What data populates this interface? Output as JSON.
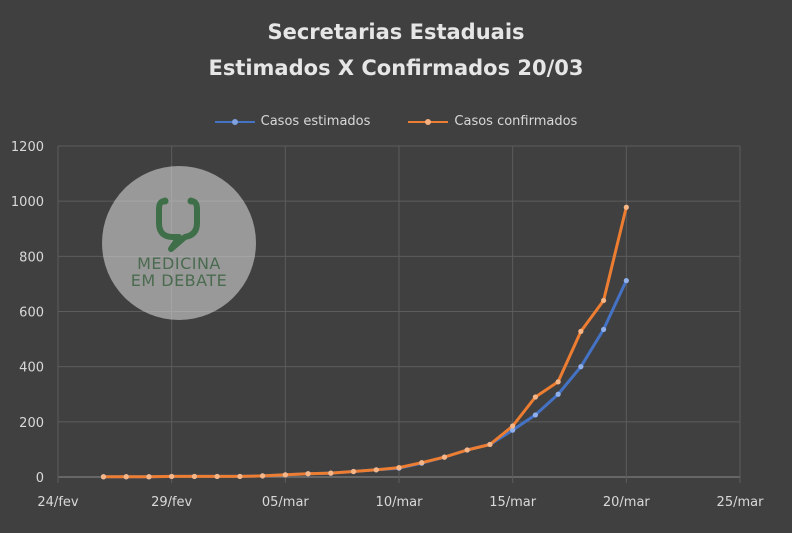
{
  "chart_data": {
    "type": "line",
    "title": [
      "Secretarias Estaduais",
      "Estimados X Confirmados 20/03"
    ],
    "xlabel": "",
    "ylabel": "",
    "x_ticks": [
      "24/fev",
      "29/fev",
      "05/mar",
      "10/mar",
      "15/mar",
      "20/mar",
      "25/mar"
    ],
    "y_ticks": [
      "0",
      "200",
      "400",
      "600",
      "800",
      "1000",
      "1200"
    ],
    "ylim": [
      0,
      1200
    ],
    "xlim": [
      "2020-02-24",
      "2020-03-25"
    ],
    "grid": true,
    "legend_position": "top",
    "series": [
      {
        "name": "Casos estimados",
        "color": "#4472c4",
        "points": [
          [
            "2020-02-26",
            1
          ],
          [
            "2020-02-27",
            1
          ],
          [
            "2020-02-28",
            1
          ],
          [
            "2020-02-29",
            2
          ],
          [
            "2020-03-01",
            2
          ],
          [
            "2020-03-02",
            2
          ],
          [
            "2020-03-03",
            2
          ],
          [
            "2020-03-04",
            4
          ],
          [
            "2020-03-05",
            8
          ],
          [
            "2020-03-06",
            12
          ],
          [
            "2020-03-07",
            14
          ],
          [
            "2020-03-08",
            20
          ],
          [
            "2020-03-09",
            26
          ],
          [
            "2020-03-10",
            32
          ],
          [
            "2020-03-11",
            50
          ],
          [
            "2020-03-12",
            72
          ],
          [
            "2020-03-13",
            98
          ],
          [
            "2020-03-14",
            118
          ],
          [
            "2020-03-15",
            170
          ],
          [
            "2020-03-16",
            225
          ],
          [
            "2020-03-17",
            300
          ],
          [
            "2020-03-18",
            400
          ],
          [
            "2020-03-19",
            535
          ],
          [
            "2020-03-20",
            712
          ]
        ]
      },
      {
        "name": "Casos confirmados",
        "color": "#ed7d31",
        "points": [
          [
            "2020-02-26",
            1
          ],
          [
            "2020-02-27",
            1
          ],
          [
            "2020-02-28",
            1
          ],
          [
            "2020-02-29",
            2
          ],
          [
            "2020-03-01",
            2
          ],
          [
            "2020-03-02",
            2
          ],
          [
            "2020-03-03",
            2
          ],
          [
            "2020-03-04",
            4
          ],
          [
            "2020-03-05",
            8
          ],
          [
            "2020-03-06",
            12
          ],
          [
            "2020-03-07",
            14
          ],
          [
            "2020-03-08",
            20
          ],
          [
            "2020-03-09",
            26
          ],
          [
            "2020-03-10",
            34
          ],
          [
            "2020-03-11",
            52
          ],
          [
            "2020-03-12",
            72
          ],
          [
            "2020-03-13",
            98
          ],
          [
            "2020-03-14",
            118
          ],
          [
            "2020-03-15",
            185
          ],
          [
            "2020-03-16",
            290
          ],
          [
            "2020-03-17",
            345
          ],
          [
            "2020-03-18",
            528
          ],
          [
            "2020-03-19",
            640
          ],
          [
            "2020-03-20",
            978
          ]
        ]
      }
    ]
  },
  "logo": {
    "line1": "MEDICINA",
    "line2": "EM DEBATE"
  }
}
